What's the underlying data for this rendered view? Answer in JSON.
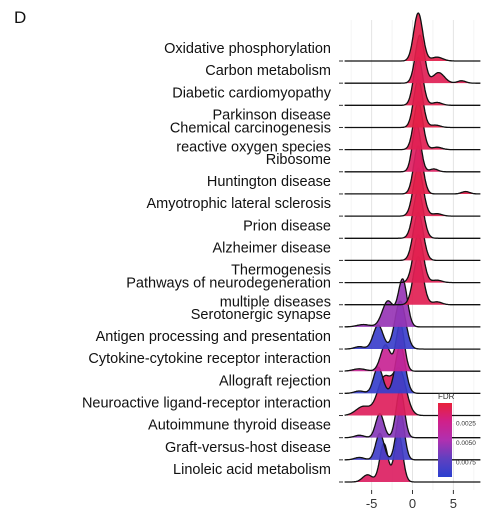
{
  "panel_label": "D",
  "chart_data": {
    "type": "ridgeline",
    "title": "",
    "xlabel": "",
    "ylabel": "",
    "xlim": [
      -8.5,
      8.5
    ],
    "x_ticks": [
      -5,
      0,
      5
    ],
    "x_tick_labels": [
      "-5",
      "0",
      "5"
    ],
    "grid": true,
    "legend": {
      "title": "FDR",
      "position": "bottom-right",
      "ticks": [
        "0.0025",
        "0.0050",
        "0.0075"
      ],
      "range": [
        0.0,
        0.0095
      ],
      "colors": [
        "#e8203a",
        "#d0208a",
        "#b030b0",
        "#6040c0",
        "#2b3fcf"
      ]
    },
    "series": [
      {
        "name": "Oxidative phosphorylation",
        "fdr": 0.0005,
        "peaks": [
          [
            0.7,
            0.55,
            1.0
          ],
          [
            3.0,
            0.7,
            0.08
          ]
        ]
      },
      {
        "name": "Carbon metabolism",
        "fdr": 0.0008,
        "peaks": [
          [
            0.9,
            0.55,
            1.0
          ],
          [
            3.2,
            0.7,
            0.22
          ],
          [
            6.0,
            0.5,
            0.05
          ]
        ]
      },
      {
        "name": "Diabetic cardiomyopathy",
        "fdr": 0.0006,
        "peaks": [
          [
            0.7,
            0.55,
            1.0
          ],
          [
            3.0,
            0.6,
            0.06
          ]
        ]
      },
      {
        "name": "Parkinson disease",
        "fdr": 0.0004,
        "peaks": [
          [
            0.7,
            0.55,
            1.0
          ],
          [
            2.8,
            0.6,
            0.05
          ]
        ]
      },
      {
        "name": "Chemical carcinogenesis  reactive oxygen species",
        "fdr": 0.0007,
        "peaks": [
          [
            0.7,
            0.55,
            1.0
          ],
          [
            3.0,
            0.6,
            0.05
          ]
        ]
      },
      {
        "name": "Ribosome",
        "fdr": 0.0012,
        "peaks": [
          [
            0.5,
            0.5,
            1.0
          ],
          [
            2.6,
            0.5,
            0.06
          ]
        ]
      },
      {
        "name": "Huntington disease",
        "fdr": 0.0005,
        "peaks": [
          [
            0.7,
            0.55,
            1.0
          ],
          [
            6.5,
            0.5,
            0.05
          ]
        ]
      },
      {
        "name": "Amyotrophic lateral sclerosis",
        "fdr": 0.0006,
        "peaks": [
          [
            0.7,
            0.6,
            1.0
          ],
          [
            3.0,
            0.6,
            0.05
          ]
        ]
      },
      {
        "name": "Prion disease",
        "fdr": 0.0007,
        "peaks": [
          [
            0.7,
            0.6,
            1.0
          ]
        ]
      },
      {
        "name": "Alzheimer disease",
        "fdr": 0.0006,
        "peaks": [
          [
            0.7,
            0.6,
            1.0
          ]
        ]
      },
      {
        "name": "Thermogenesis",
        "fdr": 0.0008,
        "peaks": [
          [
            0.7,
            0.6,
            1.0
          ],
          [
            3.0,
            0.6,
            0.05
          ]
        ]
      },
      {
        "name": "Pathways of neurodegeneration  multiple diseases",
        "fdr": 0.0007,
        "peaks": [
          [
            0.7,
            0.6,
            1.0
          ],
          [
            3.0,
            0.6,
            0.06
          ]
        ]
      },
      {
        "name": "Serotonergic synapse",
        "fdr": 0.0055,
        "peaks": [
          [
            -1.2,
            0.55,
            1.0
          ],
          [
            -3.0,
            0.7,
            0.55
          ],
          [
            -6.0,
            0.8,
            0.05
          ]
        ]
      },
      {
        "name": "Antigen processing and presentation",
        "fdr": 0.0088,
        "peaks": [
          [
            -1.5,
            0.65,
            1.0
          ],
          [
            -4.2,
            0.6,
            0.5
          ],
          [
            -6.5,
            0.6,
            0.05
          ]
        ]
      },
      {
        "name": "Cytokine-cytokine receptor interaction",
        "fdr": 0.003,
        "peaks": [
          [
            -1.5,
            0.5,
            1.0
          ],
          [
            -3.3,
            0.6,
            0.55
          ],
          [
            -6.5,
            0.8,
            0.05
          ]
        ]
      },
      {
        "name": "Allograft rejection",
        "fdr": 0.009,
        "peaks": [
          [
            -1.5,
            0.6,
            1.0
          ],
          [
            -4.2,
            0.55,
            0.55
          ],
          [
            -6.5,
            0.6,
            0.05
          ]
        ]
      },
      {
        "name": "Neuroactive ligand-receptor interaction",
        "fdr": 0.001,
        "peaks": [
          [
            -1.6,
            0.8,
            1.0
          ],
          [
            -3.5,
            0.8,
            0.8
          ],
          [
            -6.0,
            0.9,
            0.2
          ]
        ]
      },
      {
        "name": "Autoimmune thyroid disease",
        "fdr": 0.006,
        "peaks": [
          [
            -1.5,
            0.5,
            1.0
          ],
          [
            -4.0,
            0.5,
            0.5
          ],
          [
            -6.5,
            0.6,
            0.05
          ]
        ]
      },
      {
        "name": "Graft-versus-host disease",
        "fdr": 0.0085,
        "peaks": [
          [
            -1.5,
            0.5,
            1.0
          ],
          [
            -4.0,
            0.5,
            0.55
          ],
          [
            -6.5,
            0.6,
            0.05
          ]
        ]
      },
      {
        "name": "Linoleic acid metabolism",
        "fdr": 0.0012,
        "peaks": [
          [
            -1.7,
            0.5,
            1.0
          ],
          [
            -3.5,
            0.5,
            0.8
          ],
          [
            -5.5,
            0.6,
            0.15
          ]
        ]
      }
    ]
  }
}
